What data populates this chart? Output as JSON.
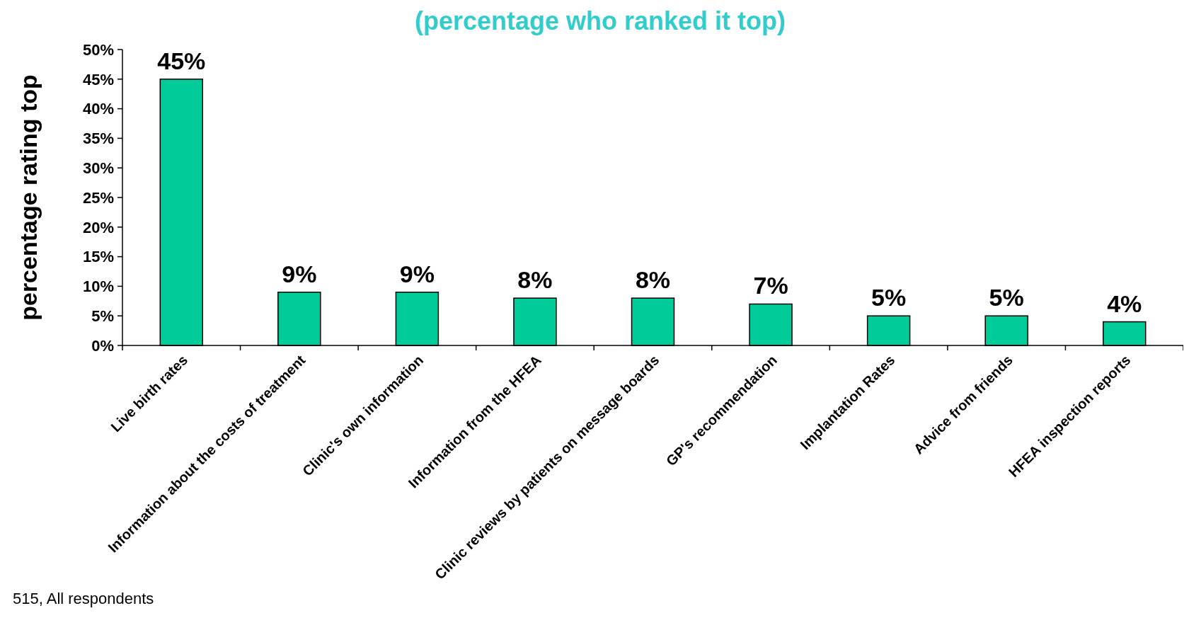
{
  "chart_data": {
    "type": "bar",
    "title": "(percentage who ranked it top)",
    "ylabel": "percentage rating top",
    "categories": [
      "Live birth rates",
      "Information about the costs of treatment",
      "Clinic's own information",
      "Information from the HFEA",
      "Clinic reviews by patients on message boards",
      "GP's recommendation",
      "Implantation Rates",
      "Advice from friends",
      "HFEA inspection reports"
    ],
    "values": [
      45,
      9,
      9,
      8,
      8,
      7,
      5,
      5,
      4
    ],
    "value_labels": [
      "45%",
      "9%",
      "9%",
      "8%",
      "8%",
      "7%",
      "5%",
      "5%",
      "4%"
    ],
    "color": "#00cc99",
    "ylim": [
      0,
      50
    ],
    "yticks": [
      {
        "value": 0,
        "label": "0%"
      },
      {
        "value": 5,
        "label": "5%"
      },
      {
        "value": 10,
        "label": "10%"
      },
      {
        "value": 15,
        "label": "15%"
      },
      {
        "value": 20,
        "label": "20%"
      },
      {
        "value": 25,
        "label": "25%"
      },
      {
        "value": 30,
        "label": "30%"
      },
      {
        "value": 35,
        "label": "35%"
      },
      {
        "value": 40,
        "label": "40%"
      },
      {
        "value": 45,
        "label": "45%"
      },
      {
        "value": 50,
        "label": "50%"
      }
    ],
    "annotations": [
      "515, All respondents"
    ]
  }
}
